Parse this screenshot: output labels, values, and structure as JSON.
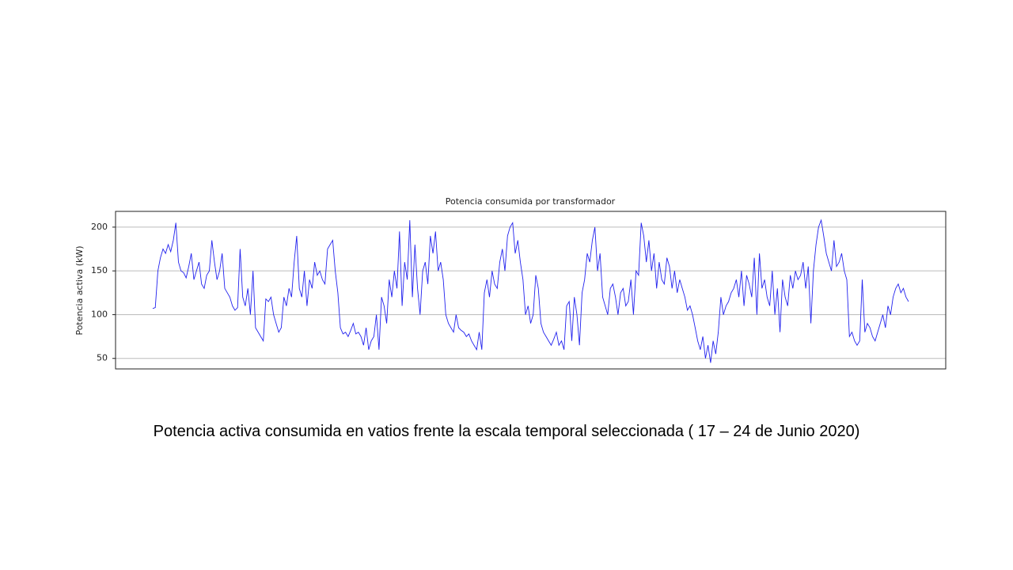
{
  "chart_data": {
    "type": "line",
    "title": "Potencia consumida por transformador",
    "ylabel": "Potencia activa (kW)",
    "caption": "Potencia activa consumida en vatios frente la escala temporal seleccionada ( 17 – 24 de Junio 2020)",
    "color": "#2222ee",
    "grid": true,
    "ylim": [
      38,
      218
    ],
    "yticks": [
      50,
      100,
      150,
      200
    ],
    "values": [
      107,
      108,
      150,
      165,
      175,
      170,
      180,
      172,
      185,
      205,
      160,
      150,
      148,
      142,
      155,
      170,
      140,
      150,
      160,
      135,
      130,
      145,
      150,
      185,
      160,
      140,
      150,
      170,
      130,
      125,
      120,
      110,
      105,
      108,
      175,
      120,
      110,
      130,
      100,
      150,
      85,
      80,
      75,
      70,
      118,
      115,
      120,
      100,
      90,
      80,
      85,
      120,
      110,
      130,
      120,
      160,
      190,
      130,
      120,
      150,
      110,
      140,
      130,
      160,
      145,
      150,
      140,
      135,
      175,
      180,
      185,
      150,
      125,
      85,
      78,
      80,
      75,
      82,
      90,
      78,
      80,
      75,
      65,
      85,
      60,
      70,
      75,
      100,
      60,
      120,
      110,
      90,
      140,
      120,
      150,
      130,
      195,
      110,
      160,
      140,
      208,
      120,
      180,
      130,
      100,
      150,
      160,
      135,
      190,
      170,
      195,
      150,
      160,
      140,
      100,
      90,
      85,
      80,
      100,
      85,
      82,
      80,
      75,
      78,
      70,
      65,
      60,
      80,
      60,
      125,
      140,
      120,
      150,
      135,
      130,
      160,
      175,
      150,
      190,
      200,
      205,
      170,
      185,
      160,
      140,
      100,
      110,
      90,
      100,
      145,
      130,
      90,
      80,
      75,
      70,
      65,
      72,
      80,
      65,
      70,
      60,
      110,
      115,
      70,
      120,
      100,
      65,
      125,
      140,
      170,
      160,
      185,
      200,
      150,
      170,
      120,
      110,
      100,
      130,
      135,
      120,
      100,
      125,
      130,
      110,
      115,
      140,
      100,
      150,
      145,
      205,
      190,
      160,
      185,
      150,
      170,
      130,
      160,
      140,
      135,
      165,
      155,
      130,
      150,
      125,
      140,
      130,
      120,
      105,
      110,
      100,
      85,
      70,
      60,
      75,
      50,
      65,
      45,
      70,
      55,
      80,
      120,
      100,
      110,
      115,
      125,
      130,
      140,
      120,
      150,
      110,
      145,
      135,
      120,
      165,
      100,
      170,
      130,
      140,
      120,
      110,
      150,
      100,
      130,
      80,
      140,
      120,
      110,
      145,
      130,
      150,
      140,
      145,
      160,
      130,
      155,
      90,
      150,
      180,
      200,
      208,
      190,
      170,
      160,
      150,
      185,
      155,
      160,
      170,
      150,
      140,
      75,
      80,
      70,
      65,
      70,
      140,
      80,
      90,
      85,
      75,
      70,
      80,
      90,
      100,
      85,
      110,
      100,
      120,
      130,
      135,
      125,
      130,
      120,
      115
    ]
  }
}
